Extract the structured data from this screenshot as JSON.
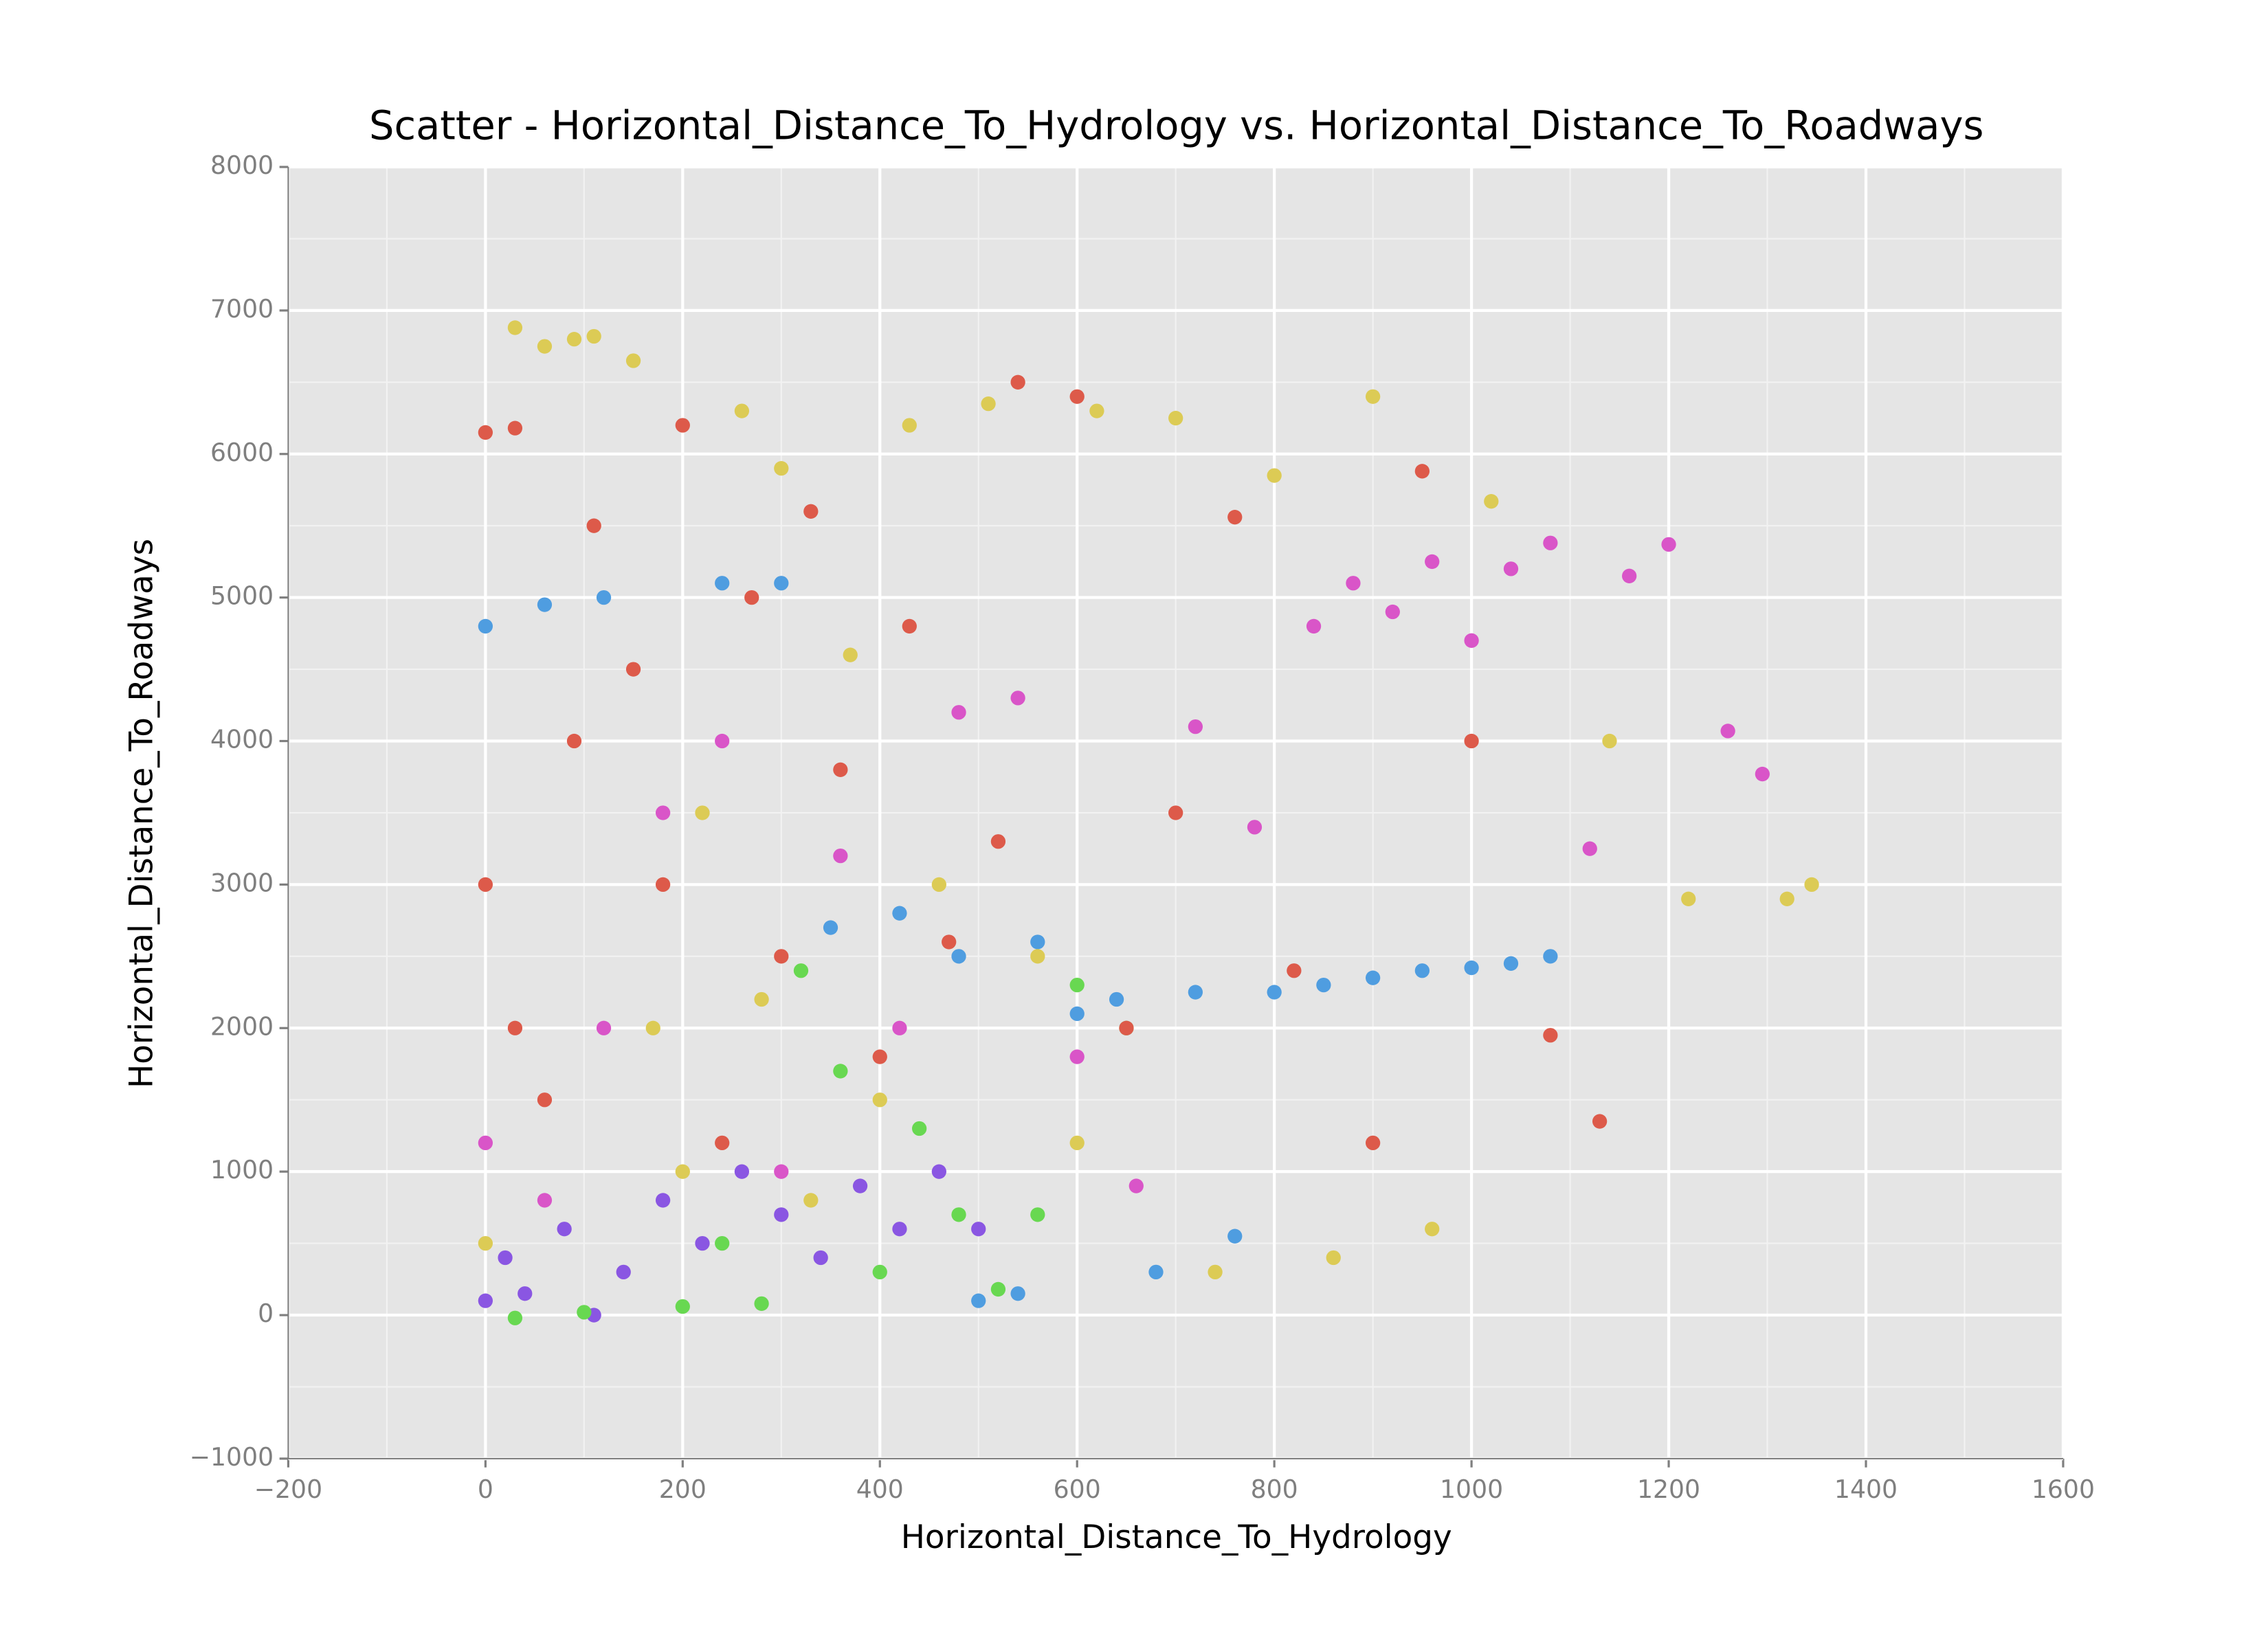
{
  "chart_data": {
    "type": "scatter",
    "title": "Scatter - Horizontal_Distance_To_Hydrology vs. Horizontal_Distance_To_Roadways",
    "xlabel": "Horizontal_Distance_To_Hydrology",
    "ylabel": "Horizontal_Distance_To_Roadways",
    "xlim": [
      -200,
      1600
    ],
    "ylim": [
      -1000,
      8000
    ],
    "xticks": [
      {
        "value": -200,
        "label": "−200"
      },
      0,
      200,
      400,
      600,
      800,
      1000,
      1200,
      1400,
      1600
    ],
    "yticks": [
      {
        "value": -1000,
        "label": "−1000"
      },
      0,
      1000,
      2000,
      3000,
      4000,
      5000,
      6000,
      7000,
      8000
    ],
    "grid": true,
    "series": [
      {
        "color": "#8a56e2",
        "x": [
          0,
          20,
          40,
          80,
          110,
          140,
          180,
          220,
          260,
          300,
          340,
          380,
          420,
          460,
          500
        ],
        "values": [
          100,
          400,
          150,
          600,
          0,
          300,
          800,
          500,
          1000,
          700,
          400,
          900,
          600,
          1000,
          600
        ]
      },
      {
        "color": "#68d851",
        "x": [
          30,
          100,
          200,
          240,
          280,
          320,
          360,
          400,
          440,
          480,
          520,
          560,
          600,
          650
        ],
        "values": [
          -20,
          20,
          60,
          500,
          80,
          2400,
          1700,
          300,
          1300,
          700,
          180,
          700,
          2300,
          2000
        ]
      },
      {
        "color": "#4f9de0",
        "x": [
          0,
          60,
          120,
          240,
          300,
          350,
          420,
          480,
          500,
          540,
          560,
          600,
          640,
          680,
          720,
          760,
          800,
          850,
          900,
          950,
          1000,
          1040,
          1080
        ],
        "values": [
          4800,
          4950,
          5000,
          5100,
          5100,
          2700,
          2800,
          2500,
          100,
          150,
          2600,
          2100,
          2200,
          300,
          2250,
          550,
          2250,
          2300,
          2350,
          2400,
          2420,
          2450,
          2500
        ]
      },
      {
        "color": "#d955c8",
        "x": [
          0,
          60,
          120,
          180,
          240,
          300,
          360,
          420,
          480,
          540,
          600,
          660,
          720,
          780,
          840,
          880,
          920,
          960,
          1000,
          1040,
          1080,
          1120,
          1160,
          1200,
          1260,
          1295
        ],
        "values": [
          1200,
          800,
          2000,
          3500,
          4000,
          1000,
          3200,
          2000,
          4200,
          4300,
          1800,
          900,
          4100,
          3400,
          4800,
          5100,
          4900,
          5250,
          4700,
          5200,
          5380,
          3250,
          5150,
          5370,
          4070,
          3770
        ]
      },
      {
        "color": "#dd5a4a",
        "x": [
          0,
          0,
          30,
          30,
          60,
          90,
          110,
          150,
          180,
          200,
          240,
          270,
          300,
          330,
          360,
          400,
          430,
          470,
          520,
          540,
          600,
          650,
          700,
          760,
          820,
          900,
          950,
          1000,
          1080,
          1130
        ],
        "values": [
          6150,
          3000,
          6180,
          2000,
          1500,
          4000,
          5500,
          4500,
          3000,
          6200,
          1200,
          5000,
          2500,
          5600,
          3800,
          1800,
          4800,
          2600,
          3300,
          6500,
          6400,
          2000,
          3500,
          5560,
          2400,
          1200,
          5880,
          4000,
          1950,
          1350
        ]
      },
      {
        "color": "#dccb55",
        "x": [
          0,
          30,
          60,
          90,
          110,
          150,
          170,
          200,
          220,
          260,
          280,
          300,
          330,
          370,
          400,
          430,
          460,
          510,
          560,
          600,
          620,
          700,
          740,
          800,
          860,
          900,
          960,
          1020,
          1140,
          1220,
          1320,
          1345
        ],
        "values": [
          500,
          6880,
          6750,
          6800,
          6820,
          6650,
          2000,
          1000,
          3500,
          6300,
          2200,
          5900,
          800,
          4600,
          1500,
          6200,
          3000,
          6350,
          2500,
          1200,
          6300,
          6250,
          300,
          5850,
          400,
          6400,
          600,
          5670,
          4000,
          2900,
          2900,
          3000
        ]
      }
    ]
  }
}
